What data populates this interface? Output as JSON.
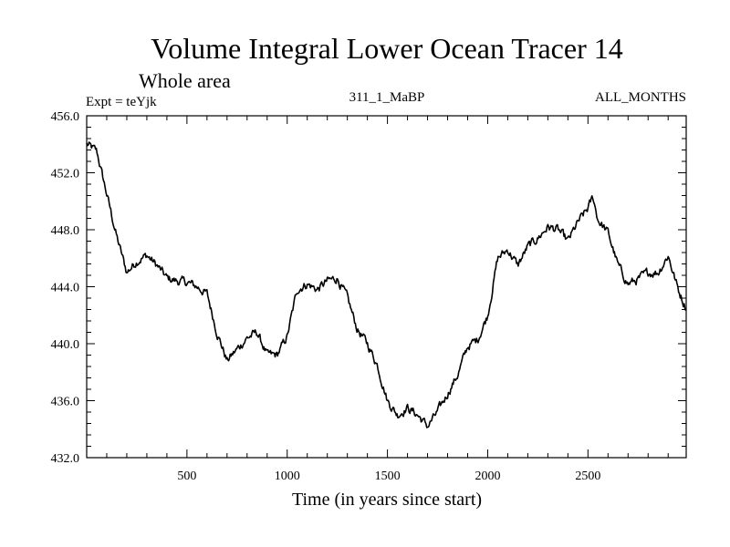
{
  "chart_data": {
    "type": "line",
    "title": "Volume Integral Lower Ocean Tracer 14",
    "subtitle": "Whole area",
    "experiment_label": "Expt = teYjk",
    "run_label": "311_1_MaBP",
    "months_label": "ALL_MONTHS",
    "xlabel": "Time (in years since start)",
    "ylabel": "",
    "xlim": [
      0,
      2990
    ],
    "ylim": [
      432,
      456
    ],
    "x_ticks": [
      500,
      1000,
      1500,
      2000,
      2500
    ],
    "x_tick_labels": [
      "500",
      "1000",
      "1500",
      "2000",
      "2500"
    ],
    "y_ticks": [
      432,
      436,
      440,
      444,
      448,
      452,
      456
    ],
    "y_tick_labels": [
      "432.0",
      "436.0",
      "440.0",
      "444.0",
      "448.0",
      "452.0",
      "456.0"
    ],
    "series": [
      {
        "name": "Lower Ocean Tracer 14",
        "x": [
          0,
          50,
          100,
          150,
          200,
          250,
          300,
          350,
          400,
          450,
          500,
          550,
          600,
          650,
          700,
          750,
          800,
          850,
          900,
          950,
          1000,
          1050,
          1100,
          1150,
          1200,
          1250,
          1300,
          1350,
          1400,
          1450,
          1500,
          1550,
          1600,
          1650,
          1700,
          1750,
          1800,
          1850,
          1900,
          1950,
          2000,
          2050,
          2100,
          2150,
          2200,
          2250,
          2300,
          2350,
          2400,
          2450,
          2500,
          2525,
          2550,
          2600,
          2650,
          2700,
          2750,
          2800,
          2850,
          2900,
          2950,
          2990
        ],
        "y": [
          454.0,
          453.5,
          450.5,
          447.5,
          445.0,
          445.8,
          446.2,
          445.5,
          444.6,
          444.4,
          444.3,
          444.0,
          443.5,
          440.8,
          438.8,
          439.6,
          440.4,
          440.8,
          439.2,
          439.2,
          440.5,
          443.8,
          444.2,
          443.8,
          444.4,
          444.6,
          443.2,
          441.0,
          440.0,
          438.5,
          436.0,
          435.0,
          435.5,
          435.0,
          434.2,
          435.2,
          436.5,
          437.8,
          439.8,
          440.3,
          442.0,
          446.0,
          446.6,
          445.5,
          446.8,
          447.4,
          448.2,
          448.0,
          447.2,
          448.5,
          449.5,
          450.3,
          448.7,
          447.8,
          445.5,
          444.2,
          444.5,
          445.0,
          445.0,
          446.2,
          443.8,
          442.5
        ]
      }
    ],
    "grid": false,
    "legend": "none",
    "line_color": "#000000"
  }
}
